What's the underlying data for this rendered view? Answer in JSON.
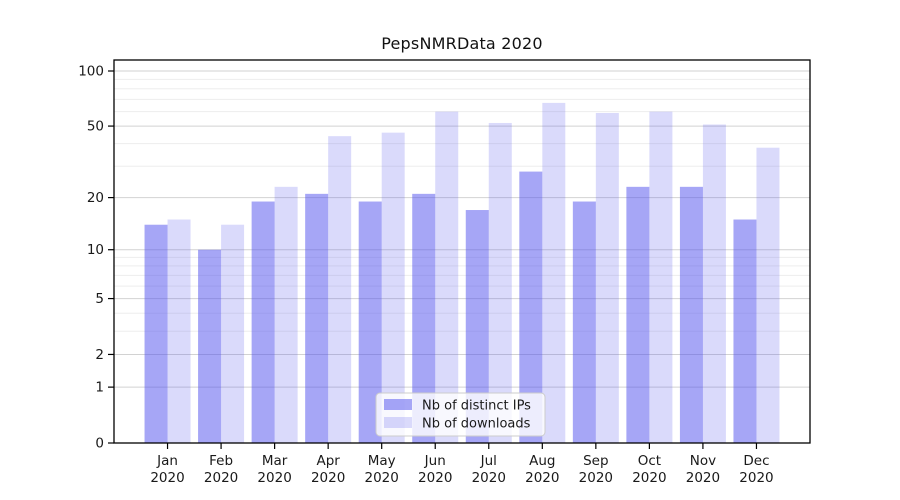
{
  "figure": {
    "background": "#ffffff"
  },
  "chart_data": {
    "type": "bar",
    "title": "PepsNMRData 2020",
    "categories": [
      "Jan",
      "Feb",
      "Mar",
      "Apr",
      "May",
      "Jun",
      "Jul",
      "Aug",
      "Sep",
      "Oct",
      "Nov",
      "Dec"
    ],
    "category_year_line": "2020",
    "series": [
      {
        "name": "Nb of distinct IPs",
        "color": "#5555ee",
        "fill_opacity": 0.52,
        "values": [
          14,
          10,
          19,
          21,
          19,
          21,
          17,
          28,
          19,
          23,
          23,
          15
        ]
      },
      {
        "name": "Nb of downloads",
        "color": "#5555ee",
        "fill_opacity": 0.22,
        "values": [
          15,
          14,
          23,
          44,
          46,
          60,
          52,
          67,
          59,
          60,
          51,
          38
        ]
      }
    ],
    "xlabel": "",
    "ylabel": "",
    "y_scale": "log1p",
    "y_ticks": [
      0,
      1,
      2,
      5,
      10,
      20,
      50,
      100
    ],
    "y_minor_gridlines": [
      3,
      4,
      6,
      7,
      8,
      9,
      30,
      40,
      60,
      70,
      80,
      90
    ],
    "ylim": [
      0,
      115
    ],
    "grid": true,
    "legend_position": "bottom-center",
    "colors": {
      "major_gridline": "#d2d2d2",
      "minor_gridline": "#ededed",
      "spine": "#000000",
      "tick_label": "#1a1a1a",
      "legend_border": "#cccccc",
      "legend_background": "#ffffff"
    }
  }
}
